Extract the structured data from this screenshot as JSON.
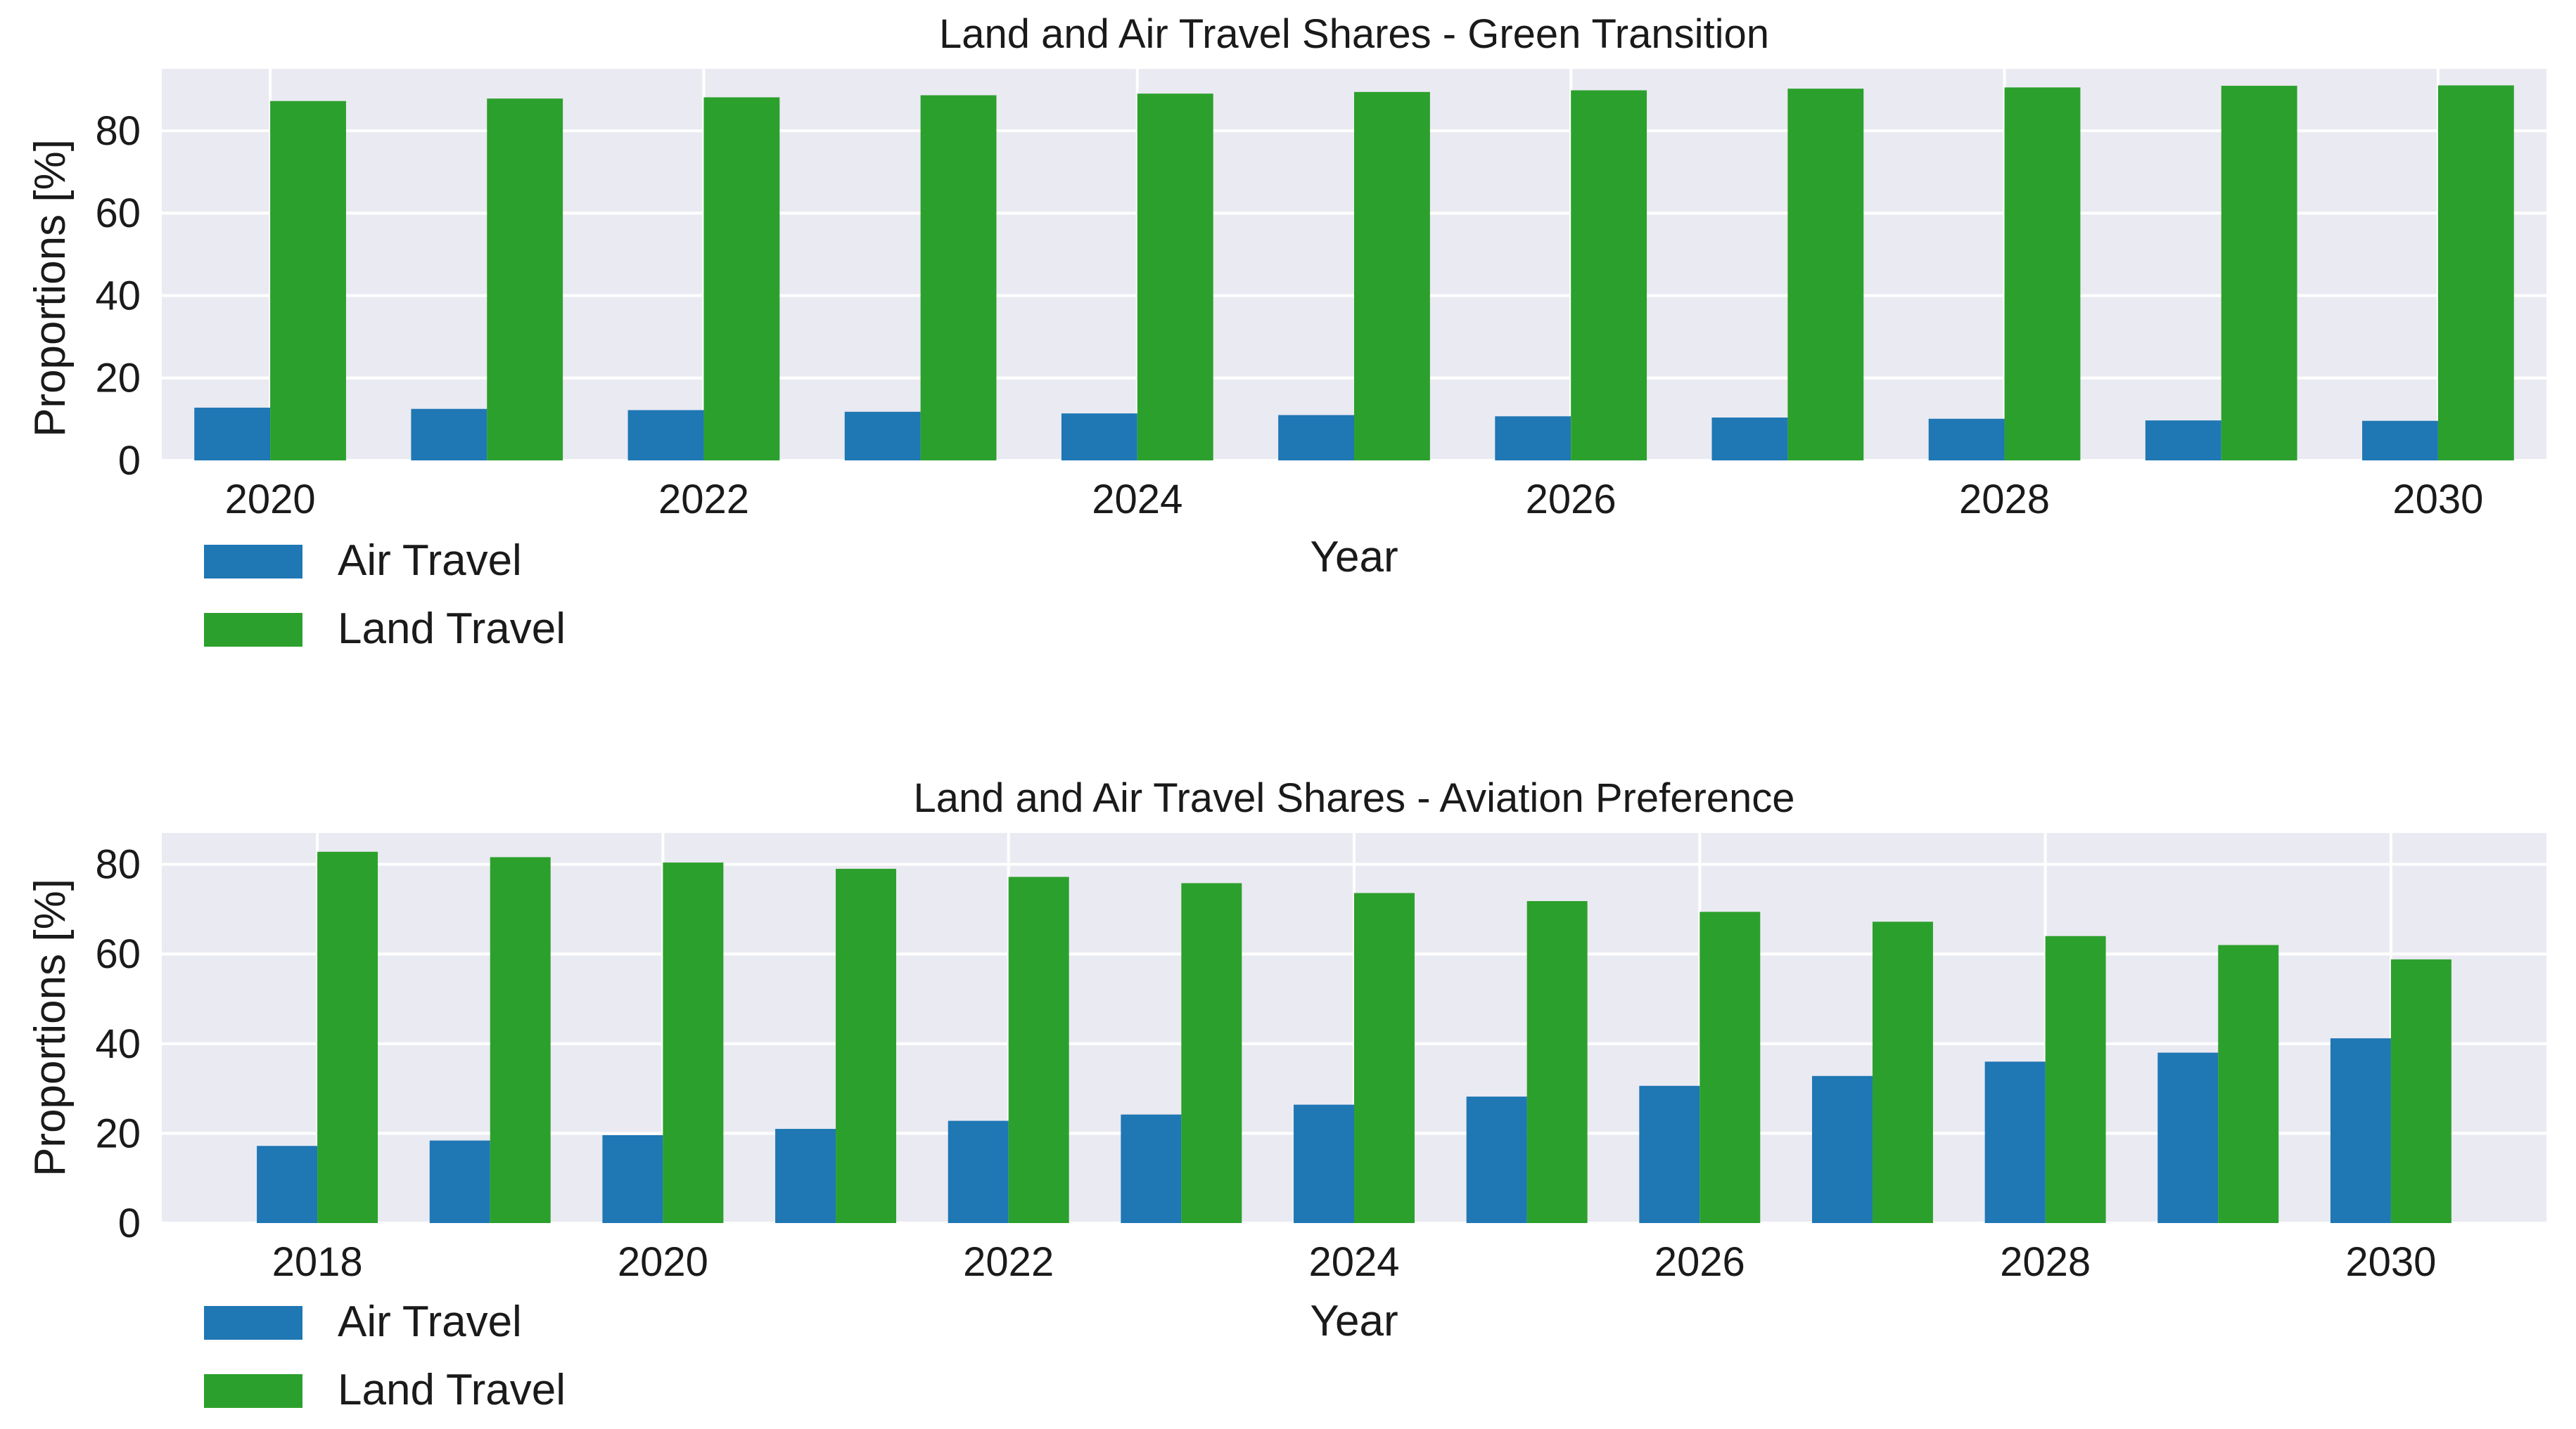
{
  "chart_data": [
    {
      "type": "bar",
      "title": "Land and Air Travel Shares - Green Transition",
      "xlabel": "Year",
      "ylabel": "Proportions [%]",
      "categories": [
        2020,
        2021,
        2022,
        2023,
        2024,
        2025,
        2026,
        2027,
        2028,
        2029,
        2030
      ],
      "series": [
        {
          "name": "Air Travel",
          "color": "#1f77b4",
          "values": [
            12.8,
            12.5,
            12.2,
            11.8,
            11.4,
            11.0,
            10.7,
            10.4,
            10.1,
            9.7,
            9.6
          ]
        },
        {
          "name": "Land Travel",
          "color": "#2ca02c",
          "values": [
            87.2,
            87.8,
            88.1,
            88.6,
            89.0,
            89.4,
            89.8,
            90.2,
            90.5,
            90.9,
            91.0
          ]
        }
      ],
      "xticks": [
        2020,
        2022,
        2024,
        2026,
        2028,
        2030
      ],
      "yticks": [
        0,
        20,
        40,
        60,
        80
      ],
      "ylim": [
        0,
        95
      ],
      "xlim": [
        2019.5,
        2030.5
      ],
      "legend": [
        "Air Travel",
        "Land Travel"
      ],
      "legend_position": "below-left"
    },
    {
      "type": "bar",
      "title": "Land and Air Travel Shares - Aviation Preference",
      "xlabel": "Year",
      "ylabel": "Proportions [%]",
      "categories": [
        2018,
        2019,
        2020,
        2021,
        2022,
        2023,
        2024,
        2025,
        2026,
        2027,
        2028,
        2029,
        2030
      ],
      "series": [
        {
          "name": "Air Travel",
          "color": "#1f77b4",
          "values": [
            17.2,
            18.4,
            19.6,
            21.0,
            22.8,
            24.2,
            26.4,
            28.2,
            30.6,
            32.8,
            36.0,
            38.0,
            41.2
          ]
        },
        {
          "name": "Land Travel",
          "color": "#2ca02c",
          "values": [
            82.8,
            81.6,
            80.4,
            79.0,
            77.2,
            75.8,
            73.6,
            71.8,
            69.4,
            67.2,
            64.0,
            62.0,
            58.8
          ]
        }
      ],
      "xticks": [
        2018,
        2020,
        2022,
        2024,
        2026,
        2028,
        2030
      ],
      "yticks": [
        0,
        20,
        40,
        60,
        80
      ],
      "ylim": [
        0,
        87
      ],
      "xlim": [
        2017.1,
        2030.9
      ],
      "legend": [
        "Air Travel",
        "Land Travel"
      ],
      "legend_position": "below-left"
    }
  ]
}
